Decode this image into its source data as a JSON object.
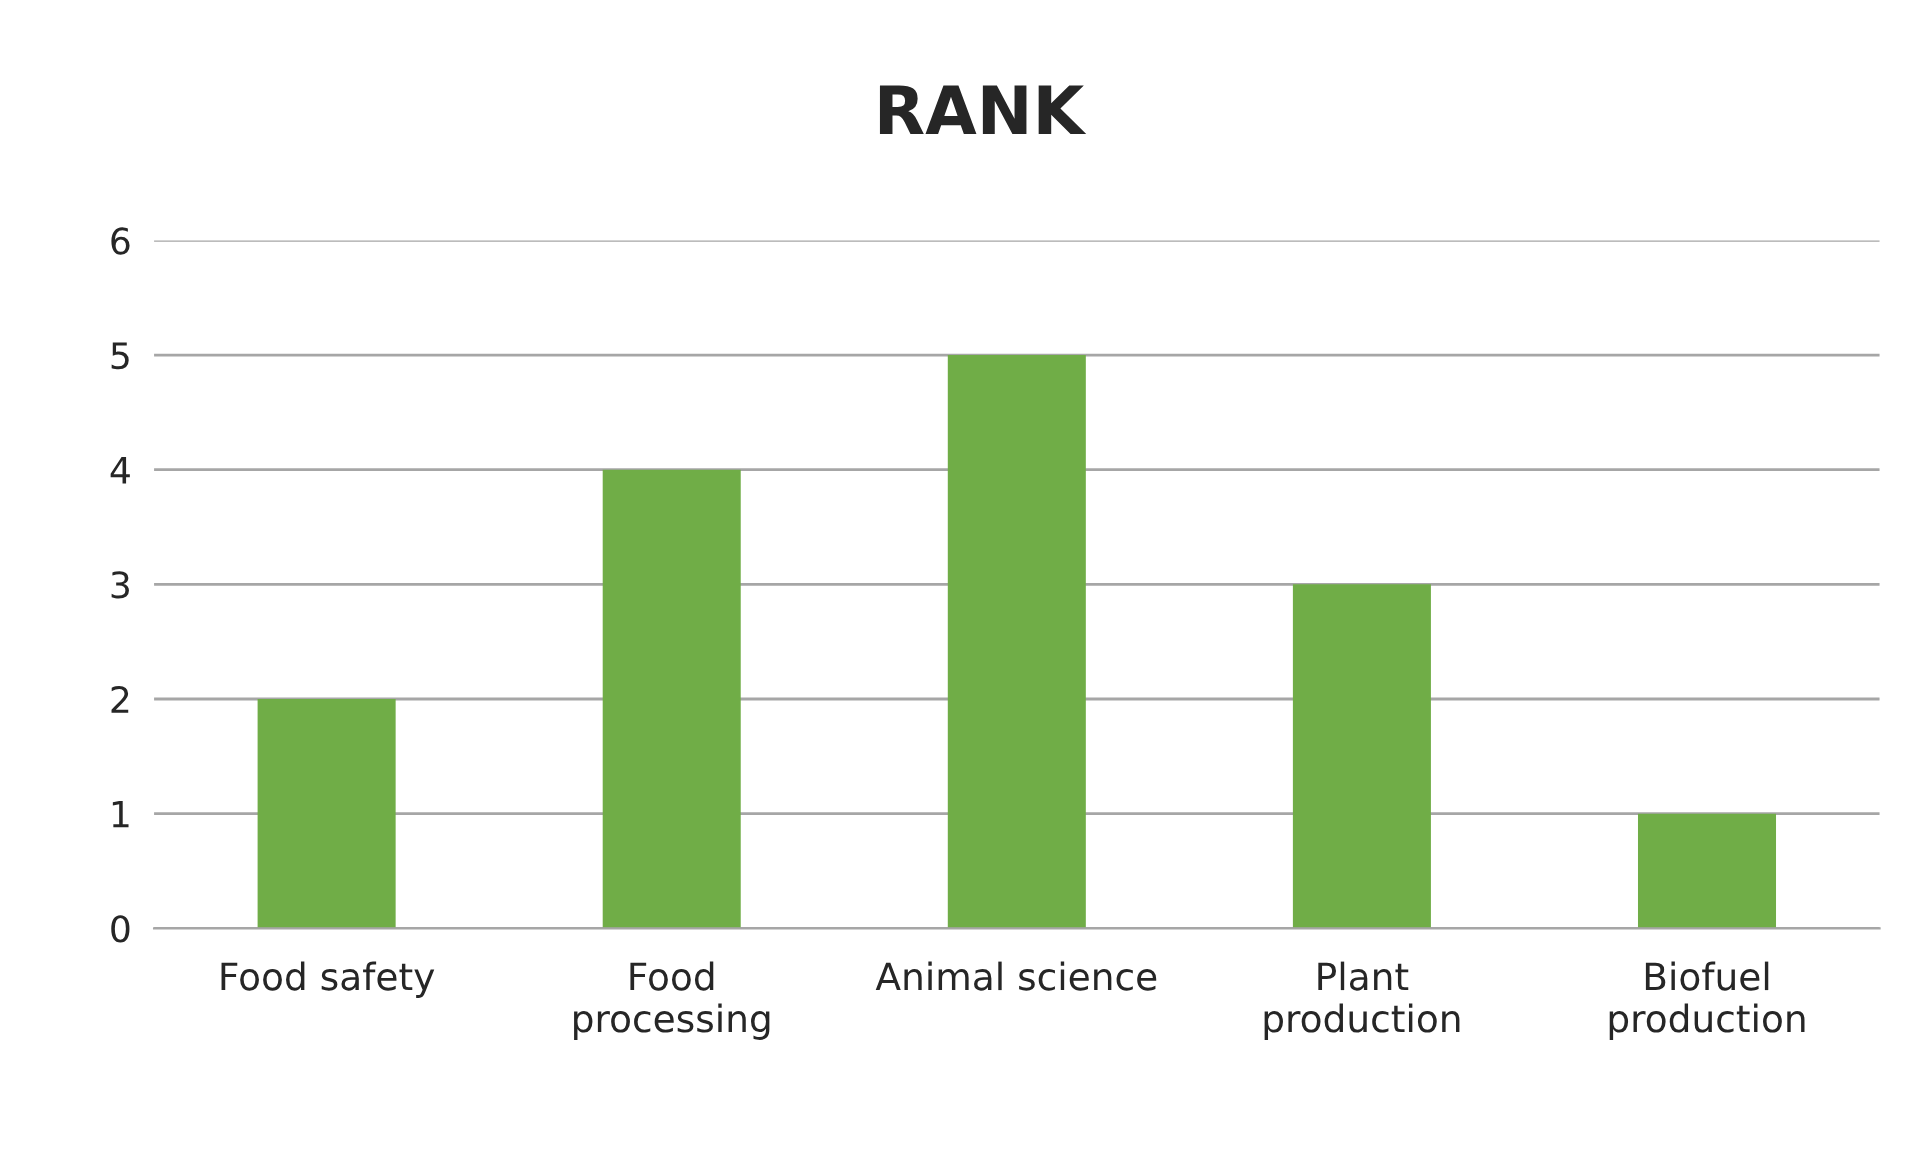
{
  "chart_data": {
    "type": "bar",
    "title": "RANK",
    "categories": [
      "Food safety",
      "Food processing",
      "Animal science",
      "Plant production",
      "Biofuel production"
    ],
    "values": [
      2,
      4,
      5,
      3,
      1
    ],
    "color": "#70ad47",
    "ylim": [
      0,
      6
    ],
    "yticks": [
      0,
      1,
      2,
      3,
      4,
      5,
      6
    ],
    "grid": "y"
  }
}
